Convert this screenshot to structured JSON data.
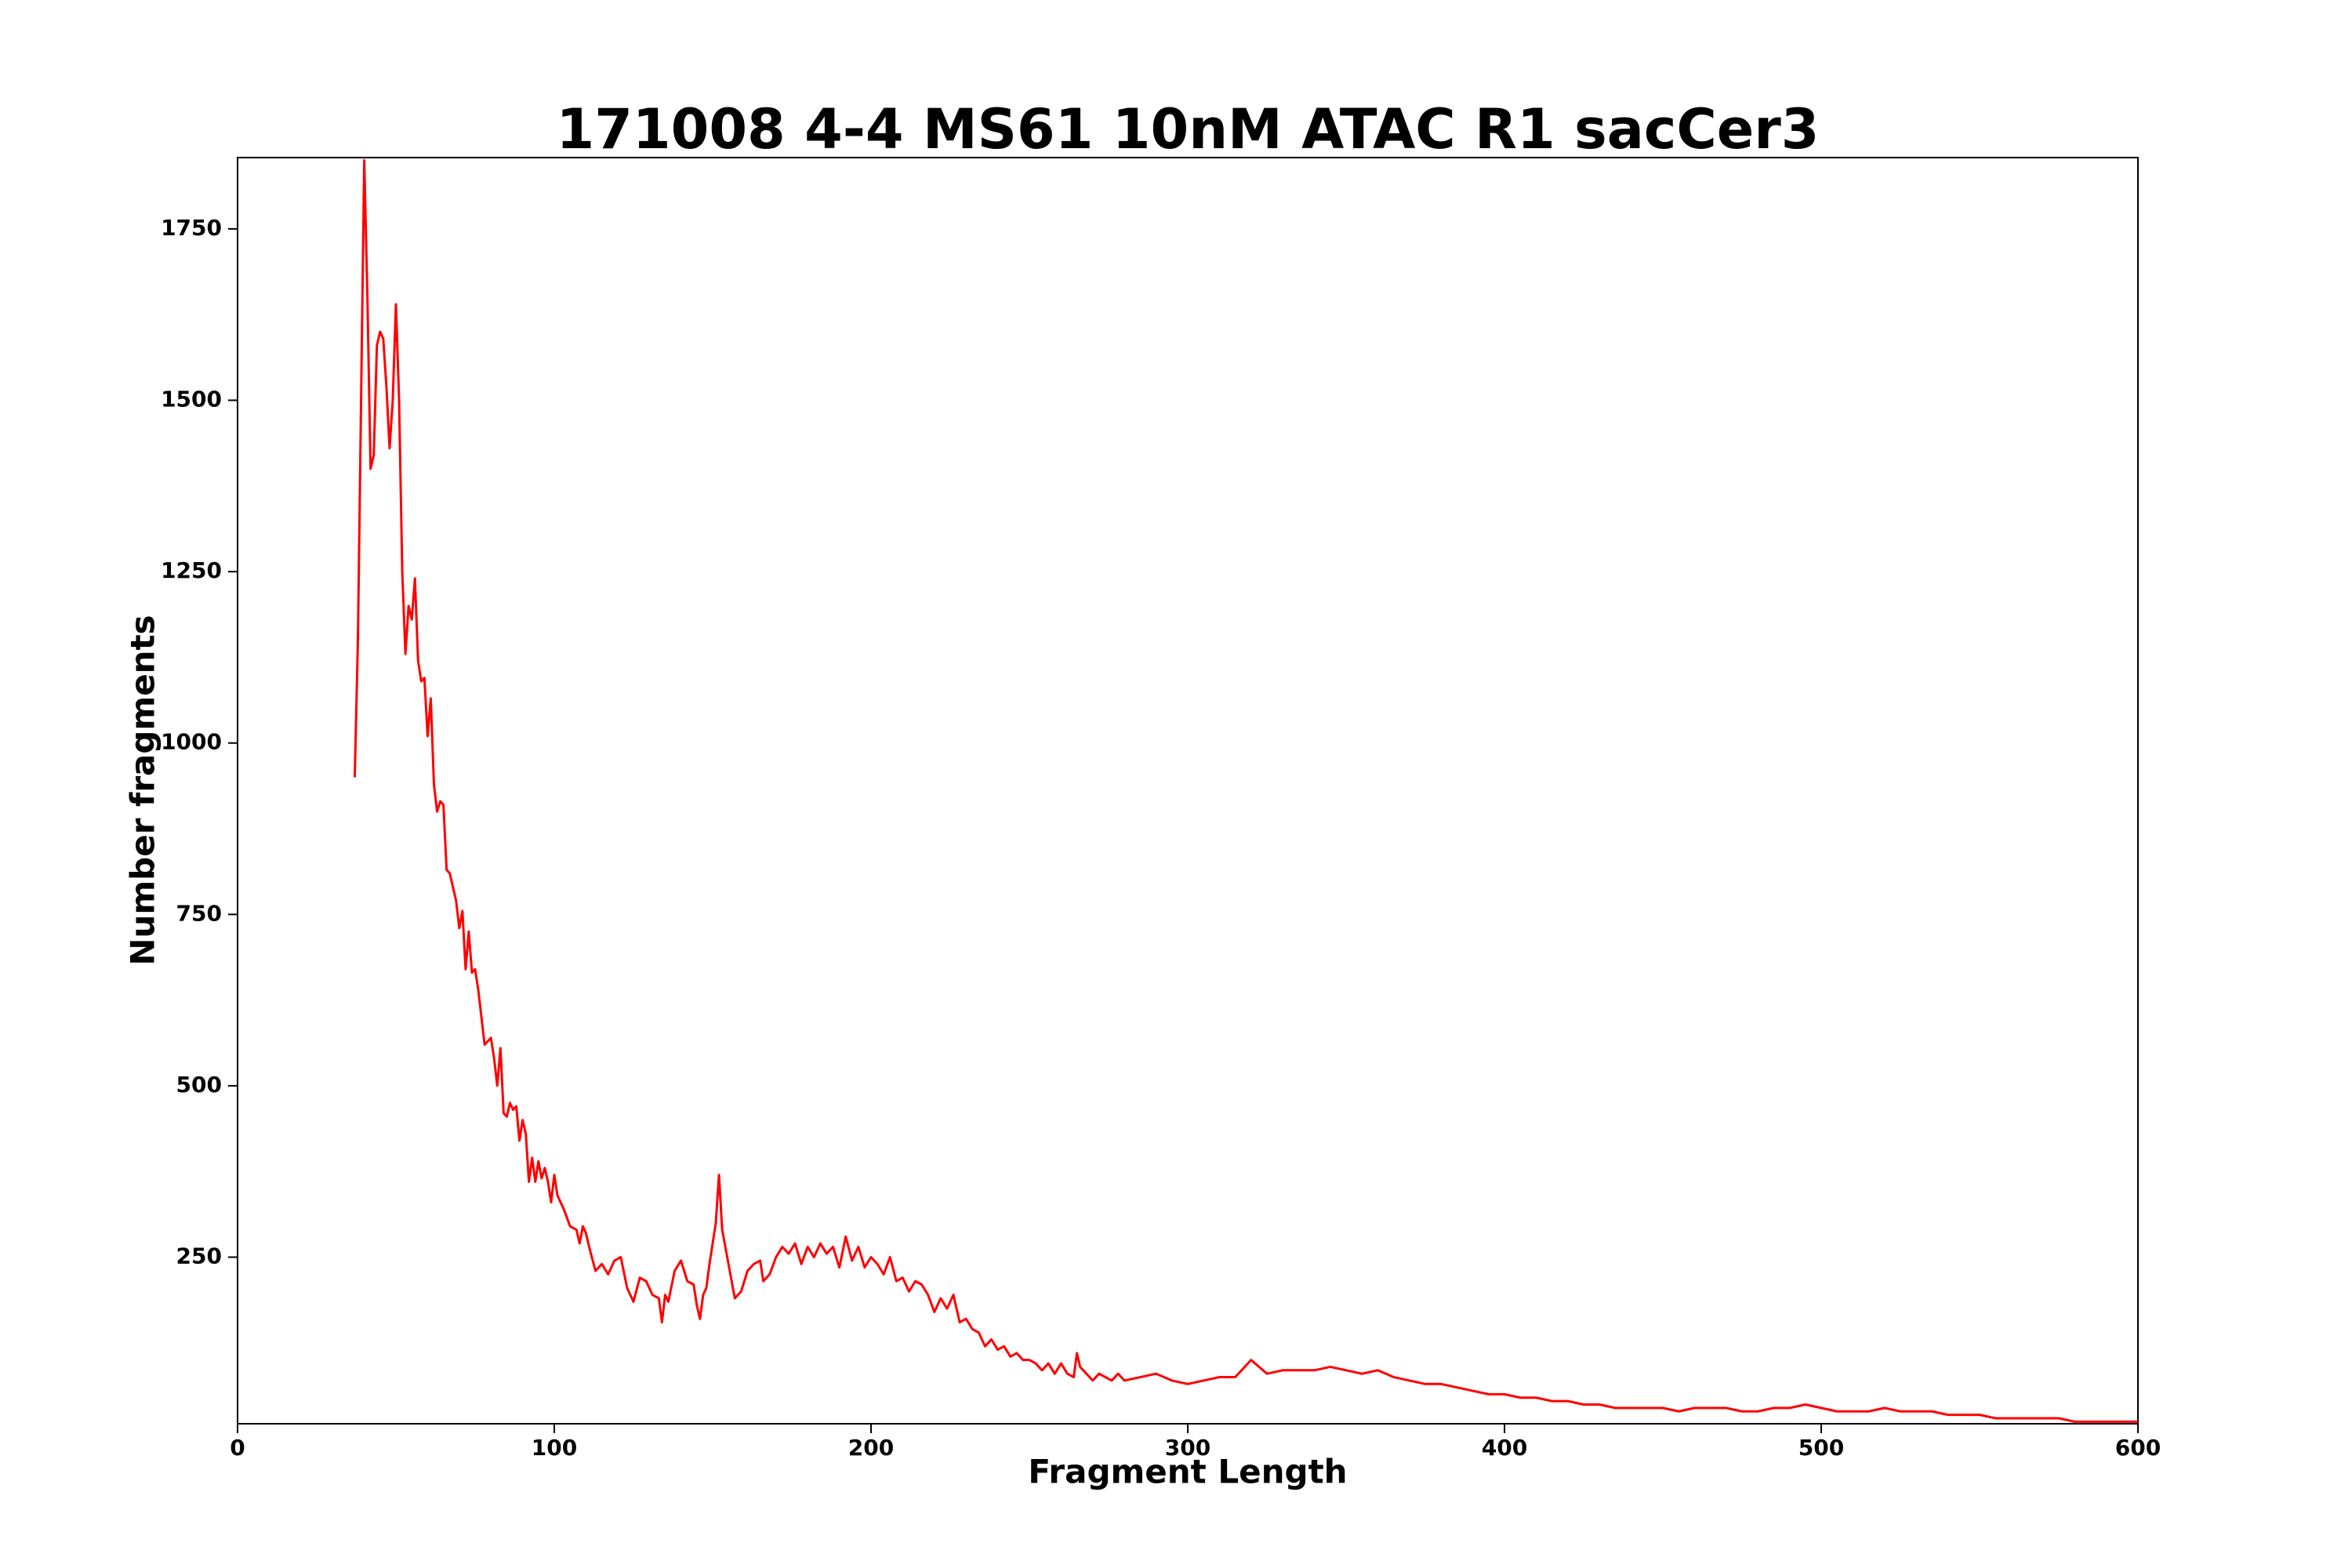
{
  "chart_data": {
    "type": "line",
    "title": "171008 4-4 MS61 10nM ATAC R1 sacCer3",
    "x_label": "Fragment Length",
    "y_label": "Number fragments",
    "xlim": [
      0,
      600
    ],
    "ylim": [
      7,
      1854
    ],
    "xticks": [
      0,
      100,
      200,
      300,
      400,
      500,
      600
    ],
    "yticks": [
      250,
      500,
      750,
      1000,
      1250,
      1500,
      1750
    ],
    "grid": false,
    "series": [
      {
        "name": "fragments",
        "color": "#ff0000",
        "x": [
          37,
          38,
          39,
          40,
          41,
          42,
          43,
          44,
          45,
          46,
          47,
          48,
          49,
          50,
          51,
          52,
          53,
          54,
          55,
          56,
          57,
          58,
          59,
          60,
          61,
          62,
          63,
          64,
          65,
          66,
          67,
          68,
          69,
          70,
          71,
          72,
          73,
          74,
          75,
          76,
          77,
          78,
          80,
          81,
          82,
          83,
          84,
          85,
          86,
          87,
          88,
          89,
          90,
          91,
          92,
          93,
          94,
          95,
          96,
          97,
          98,
          99,
          100,
          101,
          103,
          105,
          107,
          108,
          109,
          110,
          111,
          113,
          115,
          117,
          119,
          121,
          123,
          125,
          127,
          129,
          131,
          133,
          134,
          135,
          136,
          138,
          140,
          142,
          144,
          145,
          146,
          147,
          148,
          149,
          150,
          151,
          152,
          153,
          155,
          157,
          159,
          161,
          163,
          165,
          166,
          168,
          170,
          172,
          174,
          176,
          178,
          180,
          182,
          184,
          186,
          188,
          190,
          192,
          194,
          196,
          198,
          200,
          202,
          204,
          206,
          208,
          210,
          212,
          214,
          216,
          218,
          220,
          222,
          224,
          226,
          228,
          230,
          232,
          234,
          236,
          238,
          240,
          242,
          244,
          246,
          248,
          250,
          252,
          254,
          256,
          258,
          260,
          262,
          264,
          265,
          266,
          268,
          270,
          272,
          274,
          276,
          278,
          280,
          285,
          290,
          295,
          300,
          305,
          310,
          315,
          320,
          325,
          330,
          335,
          340,
          345,
          350,
          355,
          360,
          365,
          370,
          375,
          380,
          385,
          390,
          395,
          400,
          405,
          410,
          415,
          420,
          425,
          430,
          435,
          440,
          445,
          450,
          455,
          460,
          465,
          470,
          475,
          480,
          485,
          490,
          495,
          500,
          505,
          510,
          515,
          520,
          525,
          530,
          535,
          540,
          545,
          550,
          555,
          560,
          565,
          570,
          575,
          580,
          585,
          590,
          595,
          600
        ],
        "values": [
          950,
          1150,
          1500,
          1850,
          1650,
          1400,
          1420,
          1580,
          1600,
          1590,
          1520,
          1430,
          1500,
          1640,
          1500,
          1250,
          1130,
          1200,
          1180,
          1240,
          1120,
          1090,
          1095,
          1010,
          1065,
          940,
          900,
          915,
          910,
          815,
          810,
          790,
          770,
          730,
          755,
          670,
          725,
          665,
          670,
          640,
          600,
          560,
          570,
          540,
          500,
          555,
          460,
          455,
          475,
          465,
          470,
          420,
          450,
          430,
          360,
          395,
          360,
          390,
          365,
          380,
          360,
          330,
          370,
          340,
          320,
          295,
          290,
          270,
          295,
          285,
          265,
          230,
          240,
          225,
          245,
          250,
          205,
          185,
          220,
          215,
          195,
          190,
          155,
          195,
          185,
          230,
          245,
          215,
          210,
          180,
          160,
          195,
          205,
          240,
          270,
          300,
          370,
          290,
          240,
          190,
          200,
          230,
          240,
          245,
          215,
          225,
          250,
          265,
          255,
          270,
          240,
          265,
          250,
          270,
          255,
          265,
          235,
          280,
          245,
          265,
          235,
          250,
          240,
          225,
          250,
          215,
          220,
          200,
          215,
          210,
          195,
          170,
          190,
          175,
          195,
          155,
          160,
          145,
          140,
          120,
          130,
          115,
          120,
          105,
          110,
          100,
          100,
          95,
          85,
          95,
          80,
          95,
          80,
          75,
          110,
          90,
          80,
          70,
          80,
          75,
          70,
          80,
          70,
          75,
          80,
          70,
          65,
          70,
          75,
          75,
          100,
          80,
          85,
          85,
          85,
          90,
          85,
          80,
          85,
          75,
          70,
          65,
          65,
          60,
          55,
          50,
          50,
          45,
          45,
          40,
          40,
          35,
          35,
          30,
          30,
          30,
          30,
          25,
          30,
          30,
          30,
          25,
          25,
          30,
          30,
          35,
          30,
          25,
          25,
          25,
          30,
          25,
          25,
          25,
          20,
          20,
          20,
          15,
          15,
          15,
          15,
          15,
          10,
          10,
          10,
          10,
          10
        ]
      }
    ]
  }
}
